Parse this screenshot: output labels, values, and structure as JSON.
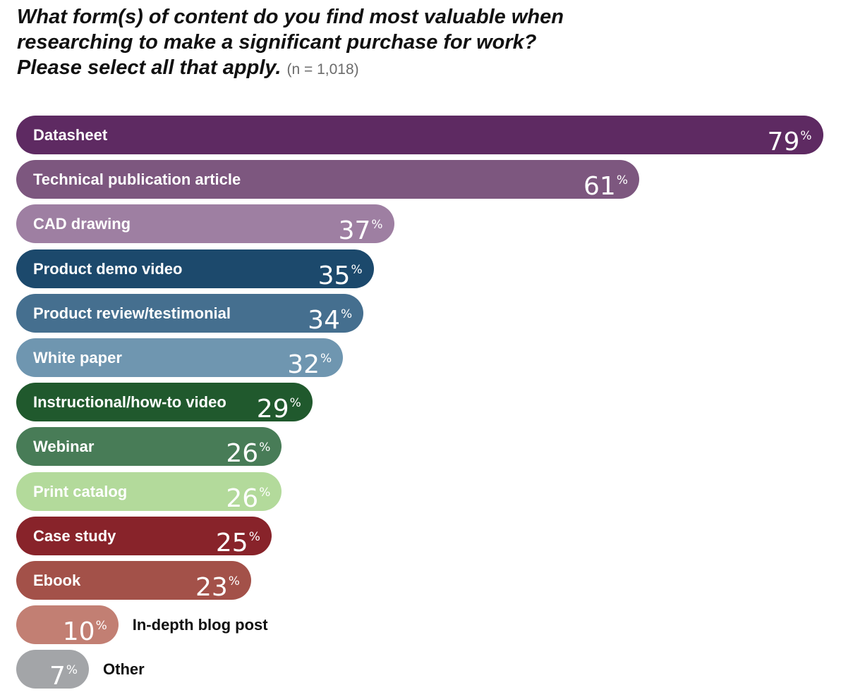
{
  "chart_data": {
    "type": "bar",
    "orientation": "horizontal",
    "title": "What form(s) of content do you find most valuable when researching to make a significant purchase for work? Please select all that apply.",
    "title_lines": [
      "What form(s) of content do you find most valuable when",
      "researching to make a significant purchase for work?",
      "Please select all that apply."
    ],
    "sample_note": "(n = 1,018)",
    "unit": "%",
    "xlim": [
      0,
      80
    ],
    "grid": false,
    "legend": "none",
    "bars": [
      {
        "category": "Datasheet",
        "value": 79,
        "color": "#5e2a62"
      },
      {
        "category": "Technical publication article",
        "value": 61,
        "color": "#7d577f"
      },
      {
        "category": "CAD drawing",
        "value": 37,
        "color": "#9e7fa2"
      },
      {
        "category": "Product demo video",
        "value": 35,
        "color": "#1c496c"
      },
      {
        "category": "Product review/testimonial",
        "value": 34,
        "color": "#456f8f"
      },
      {
        "category": "White paper",
        "value": 32,
        "color": "#6f96b0"
      },
      {
        "category": "Instructional/how-to video",
        "value": 29,
        "color": "#20592d"
      },
      {
        "category": "Webinar",
        "value": 26,
        "color": "#487c57"
      },
      {
        "category": "Print catalog",
        "value": 26,
        "color": "#b3da9b"
      },
      {
        "category": "Case study",
        "value": 25,
        "color": "#88232a"
      },
      {
        "category": "Ebook",
        "value": 23,
        "color": "#a35149"
      },
      {
        "category": "In-depth blog post",
        "value": 10,
        "color": "#c27f73"
      },
      {
        "category": "Other",
        "value": 7,
        "color": "#a3a5a8"
      }
    ]
  }
}
